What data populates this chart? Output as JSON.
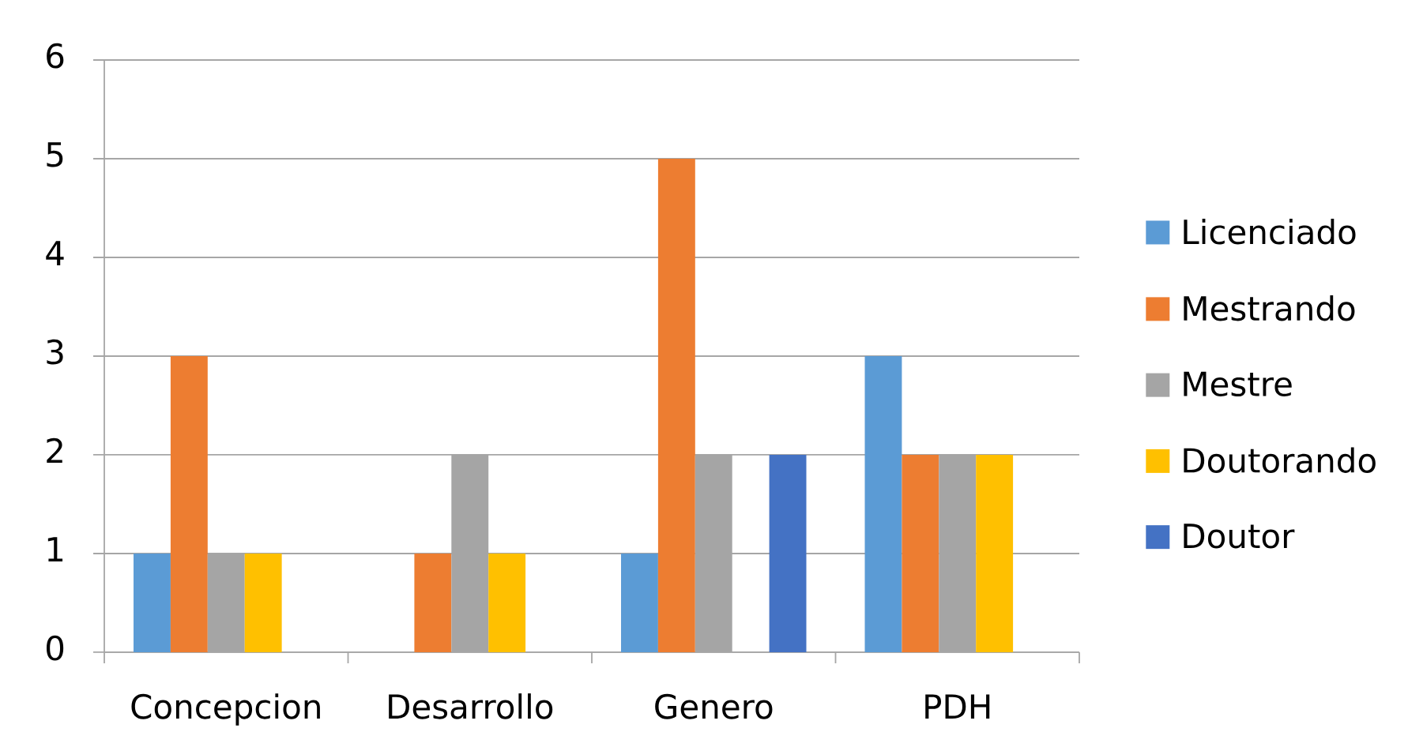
{
  "chart_data": {
    "type": "bar",
    "categories": [
      "Concepcion",
      "Desarrollo",
      "Genero",
      "PDH"
    ],
    "series": [
      {
        "name": "Licenciado",
        "color": "#5b9bd5",
        "values": [
          1,
          null,
          1,
          3
        ]
      },
      {
        "name": "Mestrando",
        "color": "#ed7d31",
        "values": [
          3,
          1,
          5,
          2
        ]
      },
      {
        "name": "Mestre",
        "color": "#a5a5a5",
        "values": [
          1,
          2,
          2,
          2
        ]
      },
      {
        "name": "Doutorando",
        "color": "#ffc000",
        "values": [
          1,
          1,
          null,
          2
        ]
      },
      {
        "name": "Doutor",
        "color": "#4472c4",
        "values": [
          null,
          null,
          2,
          null
        ]
      }
    ],
    "ylim": [
      0,
      6
    ],
    "yticks": [
      0,
      1,
      2,
      3,
      4,
      5,
      6
    ],
    "grid": "y",
    "legend": "right"
  }
}
